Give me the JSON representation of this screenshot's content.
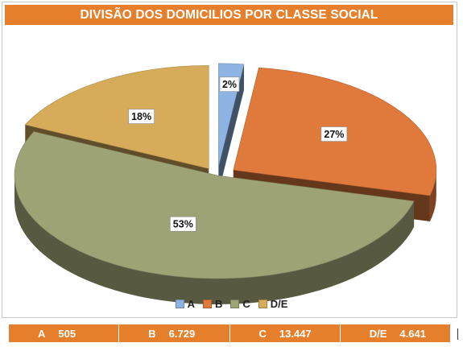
{
  "chart_data": {
    "type": "pie",
    "title": "DIVISÃO DOS DOMICILIOS POR CLASSE SOCIAL",
    "categories": [
      "A",
      "B",
      "C",
      "D/E"
    ],
    "values": [
      2,
      27,
      53,
      18
    ],
    "value_labels": [
      "2%",
      "27%",
      "53%",
      "18%"
    ],
    "colors": [
      "#8eb4e3",
      "#e07a3c",
      "#9ea376",
      "#d6ab5a"
    ],
    "legend_position": "bottom",
    "style": "3d-exploded"
  },
  "counts": [
    {
      "label": "A",
      "value": "505"
    },
    {
      "label": "B",
      "value": "6.729"
    },
    {
      "label": "C",
      "value": "13.447"
    },
    {
      "label": "D/E",
      "value": "4.641"
    }
  ]
}
